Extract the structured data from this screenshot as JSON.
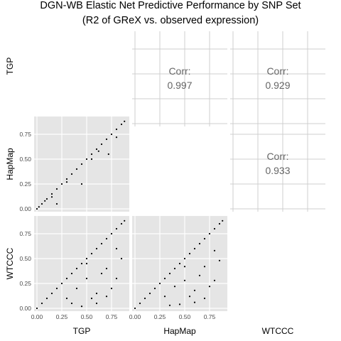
{
  "title_line1": "DGN-WB Elastic Net Predictive Performance by SNP Set",
  "title_line2": "(R2 of GReX vs. observed expression)",
  "chart_data": {
    "type": "scatter",
    "kind": "pairs-matrix",
    "variables": [
      "TGP",
      "HapMap",
      "WTCCC"
    ],
    "axis_ticks": [
      0.0,
      0.25,
      0.5,
      0.75
    ],
    "axis_tick_labels": [
      "0.00",
      "0.25",
      "0.50",
      "0.75"
    ],
    "axis_range": [
      0,
      0.9
    ],
    "grid": true,
    "panels_background": "#e5e5e5",
    "point_color": "#000000",
    "correlations": [
      {
        "row": "TGP",
        "col": "HapMap",
        "label": "Corr:",
        "value": "0.997"
      },
      {
        "row": "TGP",
        "col": "WTCCC",
        "label": "Corr:",
        "value": "0.929"
      },
      {
        "row": "HapMap",
        "col": "WTCCC",
        "label": "Corr:",
        "value": "0.933"
      }
    ],
    "scatter_panels": [
      {
        "row": "HapMap",
        "col": "TGP",
        "x": [
          0.0,
          0.02,
          0.05,
          0.08,
          0.1,
          0.15,
          0.2,
          0.25,
          0.3,
          0.35,
          0.4,
          0.45,
          0.5,
          0.55,
          0.6,
          0.65,
          0.7,
          0.75,
          0.8,
          0.85,
          0.88,
          0.3,
          0.55,
          0.62,
          0.72,
          0.8,
          0.2,
          0.15,
          0.45
        ],
        "y": [
          0.0,
          0.02,
          0.05,
          0.08,
          0.1,
          0.15,
          0.2,
          0.25,
          0.3,
          0.35,
          0.4,
          0.45,
          0.5,
          0.55,
          0.6,
          0.65,
          0.7,
          0.75,
          0.8,
          0.85,
          0.88,
          0.27,
          0.5,
          0.58,
          0.55,
          0.72,
          0.05,
          0.12,
          0.25
        ]
      },
      {
        "row": "WTCCC",
        "col": "TGP",
        "x": [
          0.0,
          0.05,
          0.1,
          0.15,
          0.2,
          0.25,
          0.3,
          0.35,
          0.4,
          0.45,
          0.5,
          0.55,
          0.6,
          0.65,
          0.7,
          0.75,
          0.8,
          0.85,
          0.88,
          0.3,
          0.4,
          0.5,
          0.6,
          0.7,
          0.8,
          0.35,
          0.45,
          0.55,
          0.65,
          0.75,
          0.85,
          0.6,
          0.7,
          0.8,
          0.5
        ],
        "y": [
          0.0,
          0.05,
          0.1,
          0.15,
          0.2,
          0.25,
          0.3,
          0.35,
          0.4,
          0.45,
          0.5,
          0.55,
          0.6,
          0.65,
          0.7,
          0.75,
          0.8,
          0.85,
          0.88,
          0.1,
          0.2,
          0.3,
          0.15,
          0.4,
          0.6,
          0.05,
          0.02,
          0.1,
          0.35,
          0.2,
          0.5,
          0.05,
          0.12,
          0.3,
          0.45
        ]
      },
      {
        "row": "WTCCC",
        "col": "HapMap",
        "x": [
          0.0,
          0.05,
          0.1,
          0.15,
          0.2,
          0.25,
          0.3,
          0.35,
          0.4,
          0.45,
          0.5,
          0.55,
          0.6,
          0.65,
          0.7,
          0.75,
          0.8,
          0.85,
          0.88,
          0.3,
          0.4,
          0.5,
          0.6,
          0.7,
          0.8,
          0.35,
          0.45,
          0.55,
          0.65,
          0.75,
          0.85,
          0.6,
          0.7,
          0.8,
          0.5
        ],
        "y": [
          0.0,
          0.05,
          0.1,
          0.15,
          0.2,
          0.25,
          0.3,
          0.35,
          0.4,
          0.45,
          0.5,
          0.55,
          0.6,
          0.65,
          0.7,
          0.75,
          0.8,
          0.85,
          0.88,
          0.12,
          0.22,
          0.28,
          0.18,
          0.42,
          0.58,
          0.03,
          0.04,
          0.12,
          0.33,
          0.22,
          0.48,
          0.06,
          0.1,
          0.28,
          0.42
        ]
      }
    ]
  }
}
